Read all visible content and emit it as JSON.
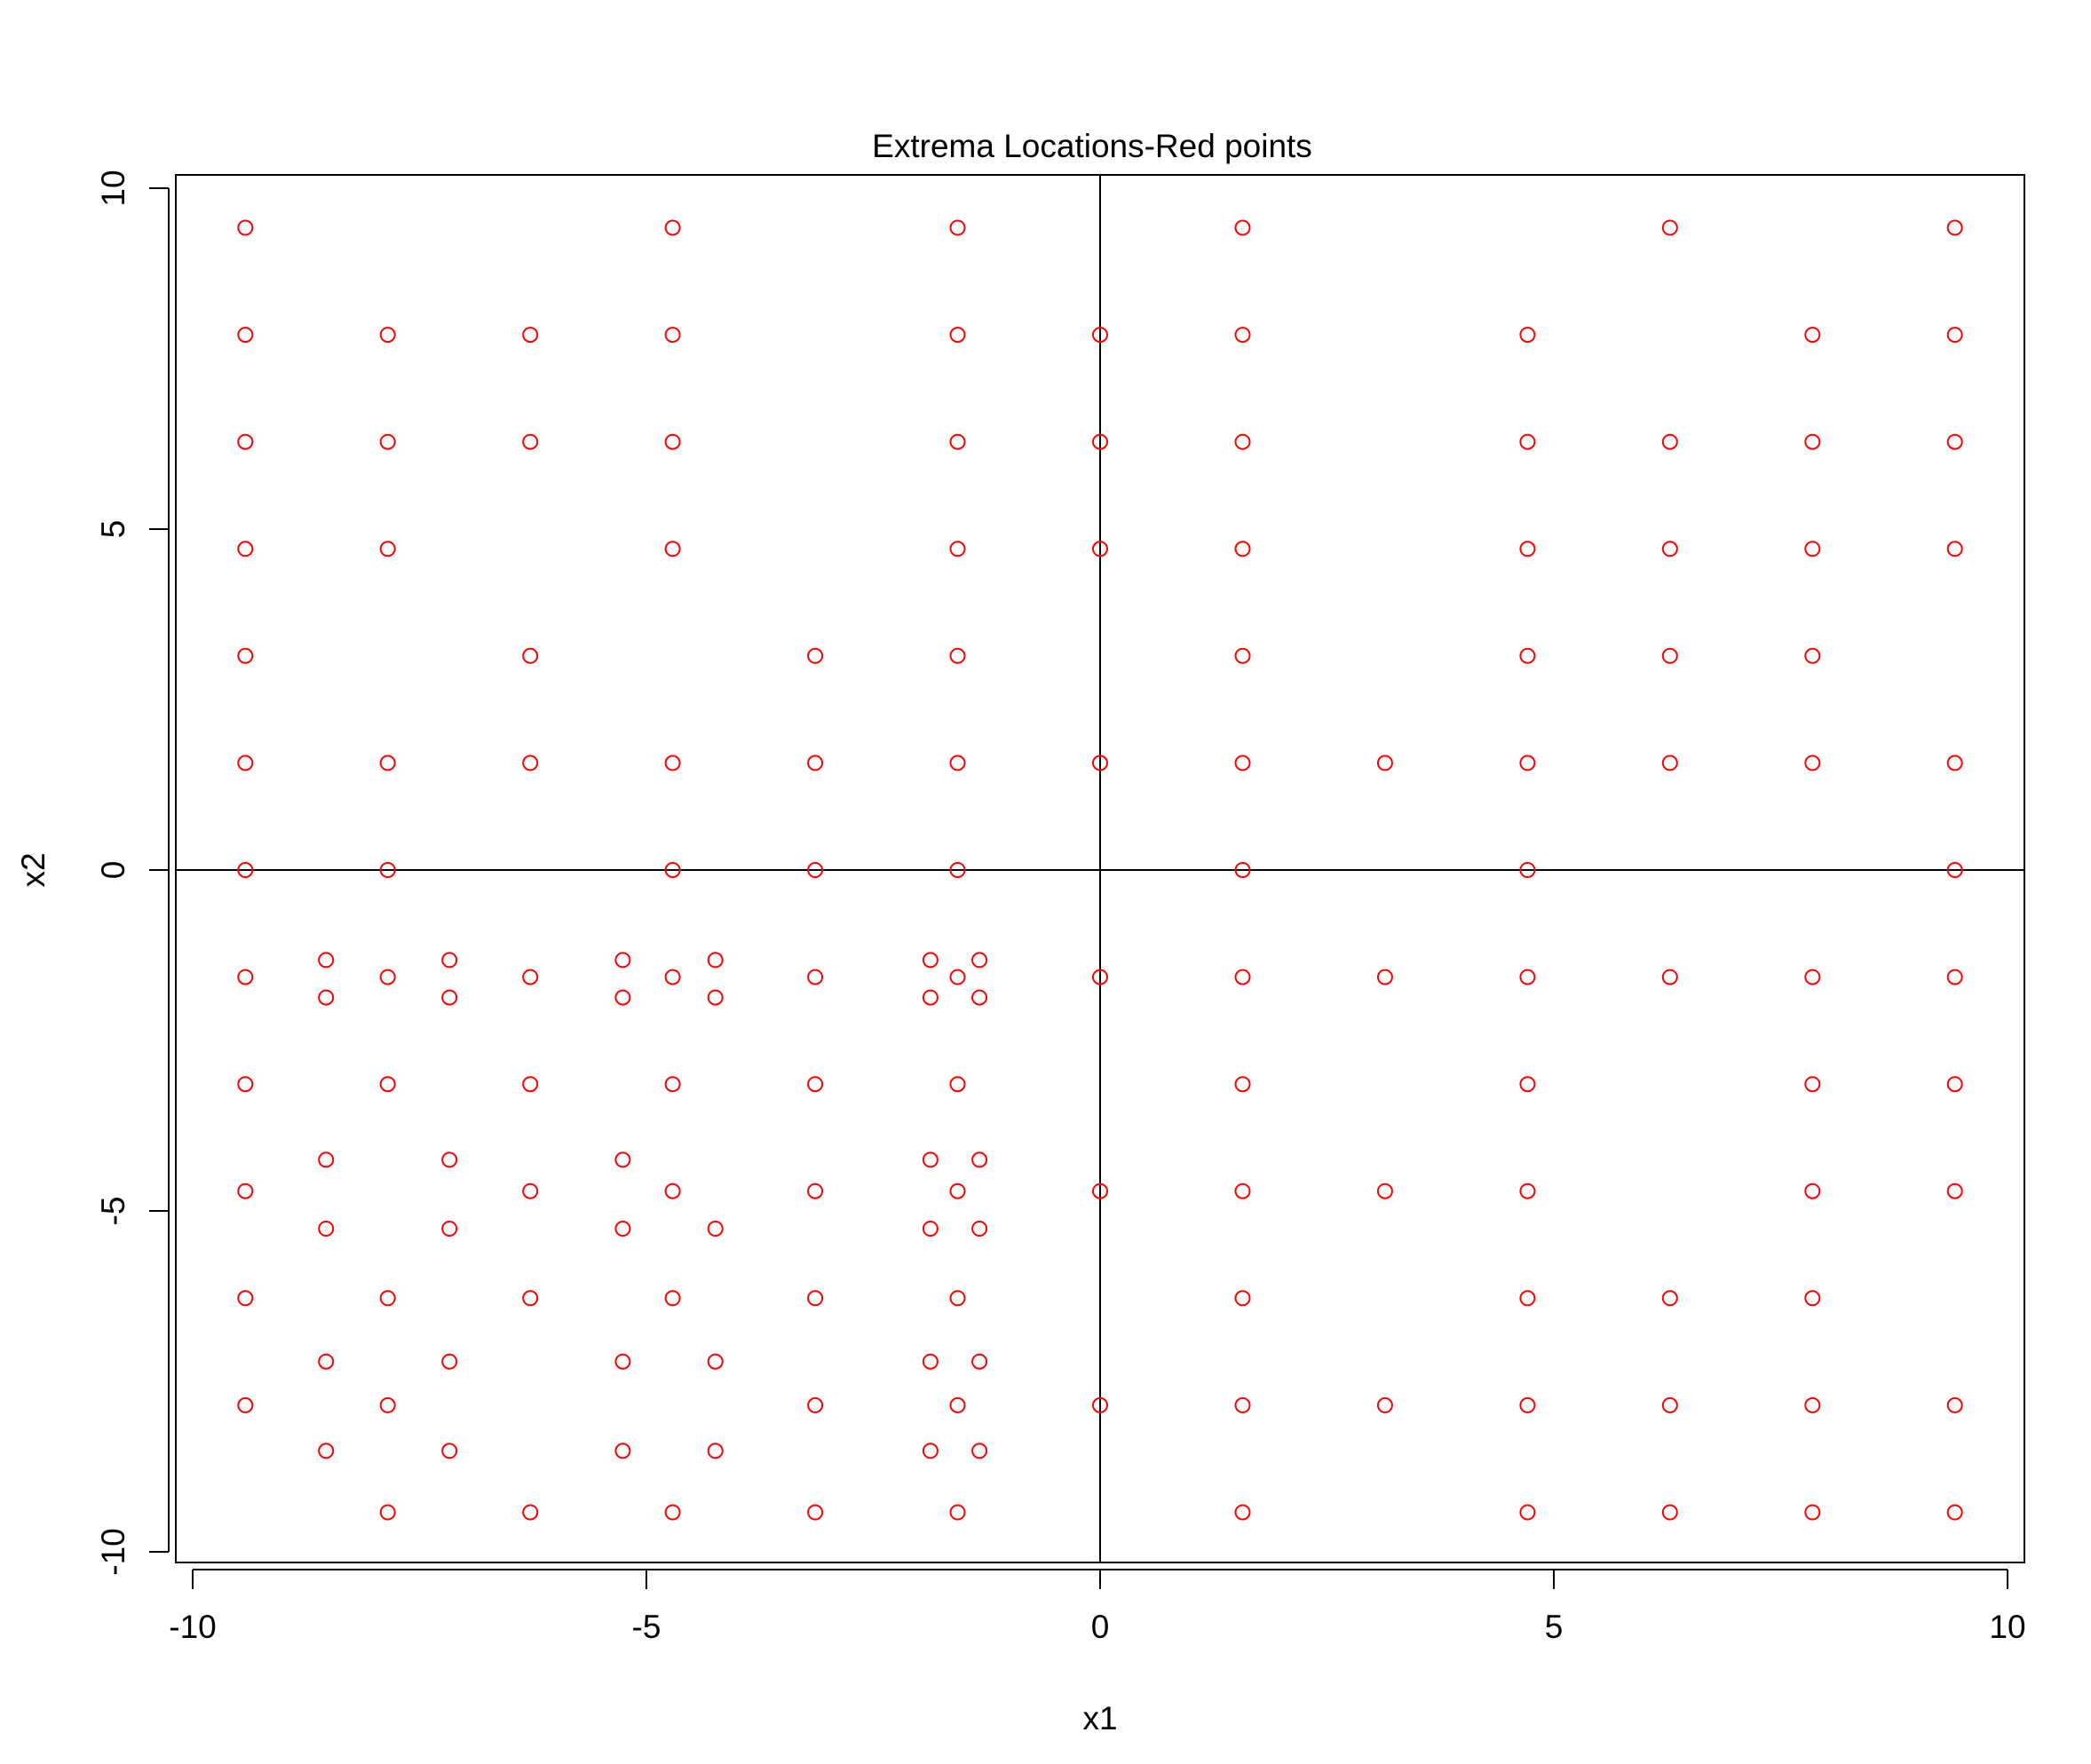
{
  "chart_data": {
    "type": "scatter",
    "title": "Extrema Locations-Red points",
    "xlabel": "x1",
    "ylabel": "x2",
    "xlim": [
      -10,
      10
    ],
    "ylim": [
      -10,
      10
    ],
    "xticks": [
      "-10",
      "-5",
      "0",
      "5",
      "10"
    ],
    "yticks": [
      "-10",
      "-5",
      "0",
      "5",
      "10"
    ],
    "point_color": "#ff0000",
    "reference_lines": {
      "x": 0,
      "y": 0
    },
    "points": [
      [
        -9.42,
        9.42
      ],
      [
        -4.71,
        9.42
      ],
      [
        -1.57,
        9.42
      ],
      [
        1.57,
        9.42
      ],
      [
        6.28,
        9.42
      ],
      [
        9.42,
        9.42
      ],
      [
        -9.42,
        7.85
      ],
      [
        -7.85,
        7.85
      ],
      [
        -6.28,
        7.85
      ],
      [
        -4.71,
        7.85
      ],
      [
        -1.57,
        7.85
      ],
      [
        0,
        7.85
      ],
      [
        1.57,
        7.85
      ],
      [
        4.71,
        7.85
      ],
      [
        7.85,
        7.85
      ],
      [
        9.42,
        7.85
      ],
      [
        -9.42,
        6.28
      ],
      [
        -7.85,
        6.28
      ],
      [
        -6.28,
        6.28
      ],
      [
        -4.71,
        6.28
      ],
      [
        -1.57,
        6.28
      ],
      [
        0,
        6.28
      ],
      [
        1.57,
        6.28
      ],
      [
        4.71,
        6.28
      ],
      [
        6.28,
        6.28
      ],
      [
        7.85,
        6.28
      ],
      [
        9.42,
        6.28
      ],
      [
        -9.42,
        4.71
      ],
      [
        -7.85,
        4.71
      ],
      [
        -4.71,
        4.71
      ],
      [
        -1.57,
        4.71
      ],
      [
        0,
        4.71
      ],
      [
        1.57,
        4.71
      ],
      [
        4.71,
        4.71
      ],
      [
        6.28,
        4.71
      ],
      [
        7.85,
        4.71
      ],
      [
        9.42,
        4.71
      ],
      [
        -9.42,
        3.14
      ],
      [
        -6.28,
        3.14
      ],
      [
        -3.14,
        3.14
      ],
      [
        -1.57,
        3.14
      ],
      [
        1.57,
        3.14
      ],
      [
        4.71,
        3.14
      ],
      [
        6.28,
        3.14
      ],
      [
        7.85,
        3.14
      ],
      [
        -9.42,
        1.57
      ],
      [
        -7.85,
        1.57
      ],
      [
        -6.28,
        1.57
      ],
      [
        -4.71,
        1.57
      ],
      [
        -3.14,
        1.57
      ],
      [
        -1.57,
        1.57
      ],
      [
        0,
        1.57
      ],
      [
        1.57,
        1.57
      ],
      [
        3.14,
        1.57
      ],
      [
        4.71,
        1.57
      ],
      [
        6.28,
        1.57
      ],
      [
        7.85,
        1.57
      ],
      [
        9.42,
        1.57
      ],
      [
        -9.42,
        0
      ],
      [
        -7.85,
        0
      ],
      [
        -4.71,
        0
      ],
      [
        -3.14,
        0
      ],
      [
        -1.57,
        0
      ],
      [
        1.57,
        0
      ],
      [
        4.71,
        0
      ],
      [
        9.42,
        0
      ],
      [
        -8.53,
        -1.32
      ],
      [
        -7.17,
        -1.32
      ],
      [
        -5.26,
        -1.32
      ],
      [
        -4.24,
        -1.32
      ],
      [
        -1.87,
        -1.32
      ],
      [
        -1.33,
        -1.32
      ],
      [
        -9.42,
        -1.57
      ],
      [
        -7.85,
        -1.57
      ],
      [
        -6.28,
        -1.57
      ],
      [
        -4.71,
        -1.57
      ],
      [
        -3.14,
        -1.57
      ],
      [
        -1.57,
        -1.57
      ],
      [
        0,
        -1.57
      ],
      [
        1.57,
        -1.57
      ],
      [
        3.14,
        -1.57
      ],
      [
        4.71,
        -1.57
      ],
      [
        6.28,
        -1.57
      ],
      [
        7.85,
        -1.57
      ],
      [
        9.42,
        -1.57
      ],
      [
        -8.53,
        -1.87
      ],
      [
        -7.17,
        -1.87
      ],
      [
        -5.26,
        -1.87
      ],
      [
        -4.24,
        -1.87
      ],
      [
        -1.87,
        -1.87
      ],
      [
        -1.33,
        -1.87
      ],
      [
        -9.42,
        -3.14
      ],
      [
        -7.85,
        -3.14
      ],
      [
        -6.28,
        -3.14
      ],
      [
        -4.71,
        -3.14
      ],
      [
        -3.14,
        -3.14
      ],
      [
        -1.57,
        -3.14
      ],
      [
        1.57,
        -3.14
      ],
      [
        4.71,
        -3.14
      ],
      [
        7.85,
        -3.14
      ],
      [
        9.42,
        -3.14
      ],
      [
        -8.53,
        -4.25
      ],
      [
        -7.17,
        -4.25
      ],
      [
        -5.26,
        -4.25
      ],
      [
        -1.87,
        -4.25
      ],
      [
        -1.33,
        -4.25
      ],
      [
        -9.42,
        -4.71
      ],
      [
        -6.28,
        -4.71
      ],
      [
        -4.71,
        -4.71
      ],
      [
        -3.14,
        -4.71
      ],
      [
        -1.57,
        -4.71
      ],
      [
        0,
        -4.71
      ],
      [
        1.57,
        -4.71
      ],
      [
        3.14,
        -4.71
      ],
      [
        4.71,
        -4.71
      ],
      [
        7.85,
        -4.71
      ],
      [
        9.42,
        -4.71
      ],
      [
        -8.53,
        -5.26
      ],
      [
        -7.17,
        -5.26
      ],
      [
        -5.26,
        -5.26
      ],
      [
        -4.24,
        -5.26
      ],
      [
        -1.87,
        -5.26
      ],
      [
        -1.33,
        -5.26
      ],
      [
        -9.42,
        -6.28
      ],
      [
        -7.85,
        -6.28
      ],
      [
        -6.28,
        -6.28
      ],
      [
        -4.71,
        -6.28
      ],
      [
        -3.14,
        -6.28
      ],
      [
        -1.57,
        -6.28
      ],
      [
        1.57,
        -6.28
      ],
      [
        4.71,
        -6.28
      ],
      [
        6.28,
        -6.28
      ],
      [
        7.85,
        -6.28
      ],
      [
        -8.53,
        -7.21
      ],
      [
        -7.17,
        -7.21
      ],
      [
        -5.26,
        -7.21
      ],
      [
        -4.24,
        -7.21
      ],
      [
        -1.87,
        -7.21
      ],
      [
        -1.33,
        -7.21
      ],
      [
        -9.42,
        -7.85
      ],
      [
        -7.85,
        -7.85
      ],
      [
        -3.14,
        -7.85
      ],
      [
        -1.57,
        -7.85
      ],
      [
        0,
        -7.85
      ],
      [
        1.57,
        -7.85
      ],
      [
        3.14,
        -7.85
      ],
      [
        4.71,
        -7.85
      ],
      [
        6.28,
        -7.85
      ],
      [
        7.85,
        -7.85
      ],
      [
        9.42,
        -7.85
      ],
      [
        -8.53,
        -8.52
      ],
      [
        -7.17,
        -8.52
      ],
      [
        -5.26,
        -8.52
      ],
      [
        -4.24,
        -8.52
      ],
      [
        -1.87,
        -8.52
      ],
      [
        -1.33,
        -8.52
      ],
      [
        -7.85,
        -9.42
      ],
      [
        -6.28,
        -9.42
      ],
      [
        -4.71,
        -9.42
      ],
      [
        -3.14,
        -9.42
      ],
      [
        -1.57,
        -9.42
      ],
      [
        1.57,
        -9.42
      ],
      [
        4.71,
        -9.42
      ],
      [
        6.28,
        -9.42
      ],
      [
        7.85,
        -9.42
      ],
      [
        9.42,
        -9.42
      ]
    ]
  }
}
